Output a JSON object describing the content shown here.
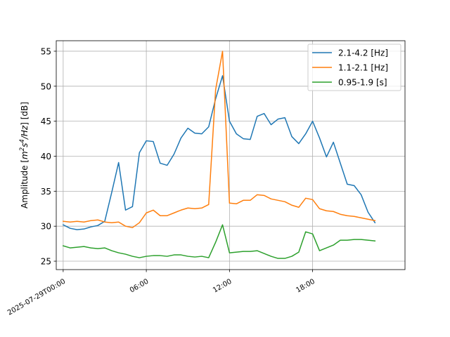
{
  "chart_data": {
    "type": "line",
    "title": "",
    "xlabel": "",
    "ylabel": "Amplitude [m²s⁴/Hz] [dB]",
    "x_ticks": [
      "2025-07-29T00:00",
      "06:00",
      "12:00",
      "18:00"
    ],
    "xlim": [
      "2025-07-28T23:30",
      "2025-07-30T00:40"
    ],
    "ylim": [
      23.8,
      56.5
    ],
    "y_ticks": [
      25,
      30,
      35,
      40,
      45,
      50,
      55
    ],
    "grid": true,
    "legend_position": "top-right",
    "x": [
      "2025-07-29T00:00",
      "2025-07-29T00:30",
      "2025-07-29T01:00",
      "2025-07-29T01:30",
      "2025-07-29T02:00",
      "2025-07-29T02:30",
      "2025-07-29T03:00",
      "2025-07-29T03:30",
      "2025-07-29T04:00",
      "2025-07-29T04:30",
      "2025-07-29T05:00",
      "2025-07-29T05:30",
      "2025-07-29T06:00",
      "2025-07-29T06:30",
      "2025-07-29T07:00",
      "2025-07-29T07:30",
      "2025-07-29T08:00",
      "2025-07-29T08:30",
      "2025-07-29T09:00",
      "2025-07-29T09:30",
      "2025-07-29T10:00",
      "2025-07-29T10:30",
      "2025-07-29T11:00",
      "2025-07-29T11:30",
      "2025-07-29T12:00",
      "2025-07-29T12:30",
      "2025-07-29T13:00",
      "2025-07-29T13:30",
      "2025-07-29T14:00",
      "2025-07-29T14:30",
      "2025-07-29T15:00",
      "2025-07-29T15:30",
      "2025-07-29T16:00",
      "2025-07-29T16:30",
      "2025-07-29T17:00",
      "2025-07-29T17:30",
      "2025-07-29T18:00",
      "2025-07-29T18:30",
      "2025-07-29T19:00",
      "2025-07-29T19:30",
      "2025-07-29T20:00",
      "2025-07-29T20:30",
      "2025-07-29T21:00",
      "2025-07-29T21:30",
      "2025-07-29T22:00",
      "2025-07-29T22:30",
      "2025-07-29T23:00"
    ],
    "series": [
      {
        "name": "2.1-4.2 [Hz]",
        "color": "#1f77b4",
        "values": [
          30.2,
          29.7,
          29.5,
          29.6,
          29.9,
          30.1,
          30.7,
          34.8,
          39.1,
          32.3,
          32.8,
          40.5,
          42.2,
          42.1,
          39.0,
          38.7,
          40.3,
          42.6,
          44.0,
          43.3,
          43.2,
          44.2,
          48.2,
          51.5,
          45.0,
          43.2,
          42.5,
          42.4,
          45.7,
          46.1,
          44.5,
          45.3,
          45.5,
          42.8,
          41.8,
          43.2,
          45.0,
          42.6,
          39.9,
          42.0,
          39.0,
          36.0,
          35.8,
          34.5,
          32.0,
          30.5,
          null
        ]
      },
      {
        "name": "1.1-2.1 [Hz]",
        "color": "#ff7f0e",
        "values": [
          30.7,
          30.6,
          30.7,
          30.6,
          30.8,
          30.9,
          30.6,
          30.5,
          30.6,
          30.0,
          29.8,
          30.5,
          31.9,
          32.3,
          31.5,
          31.5,
          31.9,
          32.3,
          32.6,
          32.5,
          32.6,
          33.1,
          49.5,
          55.0,
          33.3,
          33.2,
          33.7,
          33.7,
          34.5,
          34.4,
          33.9,
          33.7,
          33.5,
          33.0,
          32.7,
          34.0,
          33.8,
          32.5,
          32.2,
          32.1,
          31.7,
          31.5,
          31.4,
          31.2,
          31.0,
          30.8,
          null
        ]
      },
      {
        "name": "0.95-1.9 [s]",
        "color": "#2ca02c",
        "values": [
          27.2,
          26.9,
          27.0,
          27.1,
          26.9,
          26.8,
          26.9,
          26.5,
          26.2,
          26.0,
          25.7,
          25.5,
          25.7,
          25.8,
          25.8,
          25.7,
          25.9,
          25.9,
          25.7,
          25.6,
          25.7,
          25.5,
          27.7,
          30.2,
          26.2,
          26.3,
          26.4,
          26.4,
          26.5,
          26.1,
          25.7,
          25.4,
          25.4,
          25.7,
          26.3,
          29.2,
          28.9,
          26.5,
          26.9,
          27.3,
          28.0,
          28.0,
          28.1,
          28.1,
          28.0,
          27.9,
          null
        ]
      }
    ]
  }
}
